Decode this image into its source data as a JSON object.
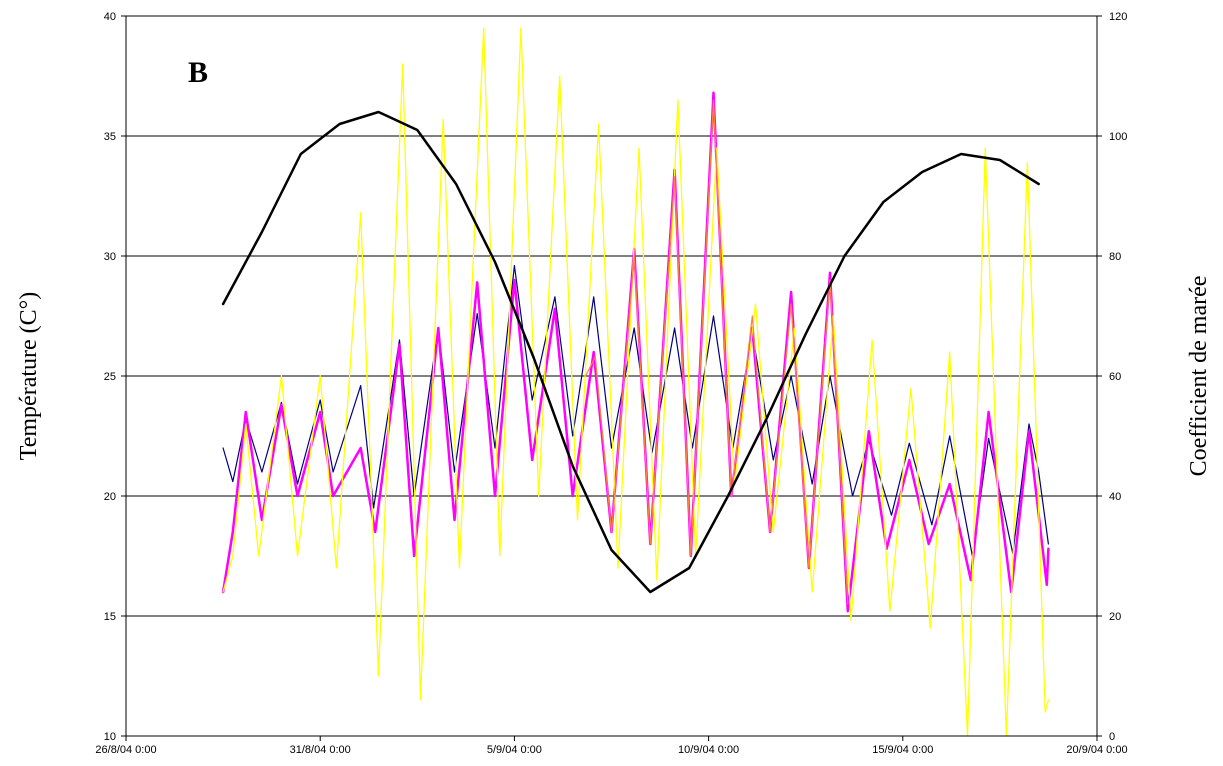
{
  "chart_data": {
    "type": "line",
    "panel_label": "B",
    "ylabel": "Température  (C°)",
    "ylabel_right": "Coefficient de marée",
    "xlim": [
      "2004-08-26T00:00",
      "2004-09-20T00:00"
    ],
    "ylim": [
      10,
      40
    ],
    "ylim_right": [
      0,
      120
    ],
    "x_ticks": [
      "26/8/04 0:00",
      "31/8/04 0:00",
      "5/9/04 0:00",
      "10/9/04 0:00",
      "15/9/04 0:00",
      "20/9/04 0:00"
    ],
    "y_ticks": [
      10,
      15,
      20,
      25,
      30,
      35,
      40
    ],
    "y_ticks_right": [
      0,
      20,
      40,
      60,
      80,
      100,
      120
    ],
    "grid": "horizontal",
    "colors": {
      "yellow": "#FFFF00",
      "magenta": "#FF00FF",
      "navy": "#000080",
      "orange": "#FF8040",
      "tide": "#000000"
    },
    "series": [
      {
        "axis": "left",
        "color_key": "navy",
        "points": [
          [
            "2004-08-28T12:00",
            22.0
          ],
          [
            "2004-08-28T18:00",
            20.6
          ],
          [
            "2004-08-29T02:00",
            23.2
          ],
          [
            "2004-08-29T12:00",
            21.0
          ],
          [
            "2004-08-30T00:00",
            23.9
          ],
          [
            "2004-08-30T10:00",
            20.5
          ],
          [
            "2004-08-31T00:00",
            24.0
          ],
          [
            "2004-08-31T08:00",
            21.0
          ],
          [
            "2004-09-01T01:00",
            24.6
          ],
          [
            "2004-09-01T09:00",
            19.5
          ],
          [
            "2004-09-02T01:00",
            26.5
          ],
          [
            "2004-09-02T10:00",
            20.0
          ],
          [
            "2004-09-03T01:00",
            27.0
          ],
          [
            "2004-09-03T11:00",
            21.0
          ],
          [
            "2004-09-04T01:00",
            27.6
          ],
          [
            "2004-09-04T12:00",
            22.0
          ],
          [
            "2004-09-05T00:00",
            29.6
          ],
          [
            "2004-09-05T11:00",
            24.0
          ],
          [
            "2004-09-06T01:00",
            28.3
          ],
          [
            "2004-09-06T12:00",
            22.5
          ],
          [
            "2004-09-07T01:00",
            28.3
          ],
          [
            "2004-09-07T12:00",
            22.0
          ],
          [
            "2004-09-08T02:00",
            27.0
          ],
          [
            "2004-09-08T13:00",
            21.8
          ],
          [
            "2004-09-09T03:00",
            27.0
          ],
          [
            "2004-09-09T14:00",
            22.0
          ],
          [
            "2004-09-10T03:00",
            27.5
          ],
          [
            "2004-09-10T15:00",
            22.0
          ],
          [
            "2004-09-11T03:00",
            26.8
          ],
          [
            "2004-09-11T16:00",
            21.5
          ],
          [
            "2004-09-12T03:00",
            25.0
          ],
          [
            "2004-09-12T16:00",
            20.5
          ],
          [
            "2004-09-13T03:00",
            25.0
          ],
          [
            "2004-09-13T17:00",
            20.0
          ],
          [
            "2004-09-14T03:00",
            22.3
          ],
          [
            "2004-09-14T17:00",
            19.2
          ],
          [
            "2004-09-15T04:00",
            22.2
          ],
          [
            "2004-09-15T18:00",
            18.8
          ],
          [
            "2004-09-16T05:00",
            22.5
          ],
          [
            "2004-09-16T19:00",
            17.5
          ],
          [
            "2004-09-17T05:00",
            22.4
          ],
          [
            "2004-09-17T20:00",
            17.6
          ],
          [
            "2004-09-18T06:00",
            23.0
          ],
          [
            "2004-09-18T12:00",
            21.0
          ],
          [
            "2004-09-18T18:00",
            18.0
          ]
        ]
      },
      {
        "axis": "left",
        "color_key": "magenta",
        "points": [
          [
            "2004-08-28T12:00",
            16.0
          ],
          [
            "2004-08-28T18:00",
            18.5
          ],
          [
            "2004-08-29T02:00",
            23.5
          ],
          [
            "2004-08-29T12:00",
            19.0
          ],
          [
            "2004-08-30T00:00",
            23.8
          ],
          [
            "2004-08-30T10:00",
            20.0
          ],
          [
            "2004-08-31T00:00",
            23.5
          ],
          [
            "2004-08-31T08:00",
            20.0
          ],
          [
            "2004-09-01T01:00",
            22.0
          ],
          [
            "2004-09-01T10:00",
            18.5
          ],
          [
            "2004-09-02T01:00",
            26.3
          ],
          [
            "2004-09-02T10:00",
            17.5
          ],
          [
            "2004-09-03T01:00",
            27.0
          ],
          [
            "2004-09-03T11:00",
            19.0
          ],
          [
            "2004-09-04T01:00",
            28.9
          ],
          [
            "2004-09-04T12:00",
            20.0
          ],
          [
            "2004-09-05T00:00",
            29.0
          ],
          [
            "2004-09-05T11:00",
            21.5
          ],
          [
            "2004-09-06T01:00",
            27.8
          ],
          [
            "2004-09-06T12:00",
            20.0
          ],
          [
            "2004-09-07T01:00",
            26.0
          ],
          [
            "2004-09-07T12:00",
            18.5
          ],
          [
            "2004-09-08T02:00",
            30.3
          ],
          [
            "2004-09-08T12:00",
            18.0
          ],
          [
            "2004-09-09T03:00",
            33.6
          ],
          [
            "2004-09-09T13:00",
            17.5
          ],
          [
            "2004-09-10T03:00",
            36.8
          ],
          [
            "2004-09-10T14:00",
            20.0
          ],
          [
            "2004-09-11T03:00",
            27.0
          ],
          [
            "2004-09-11T14:00",
            18.5
          ],
          [
            "2004-09-12T03:00",
            28.5
          ],
          [
            "2004-09-12T14:00",
            17.0
          ],
          [
            "2004-09-13T03:00",
            29.3
          ],
          [
            "2004-09-13T14:00",
            15.2
          ],
          [
            "2004-09-14T03:00",
            22.7
          ],
          [
            "2004-09-14T14:00",
            17.8
          ],
          [
            "2004-09-15T04:00",
            21.5
          ],
          [
            "2004-09-15T16:00",
            18.0
          ],
          [
            "2004-09-16T05:00",
            20.5
          ],
          [
            "2004-09-16T18:00",
            16.5
          ],
          [
            "2004-09-17T05:00",
            23.5
          ],
          [
            "2004-09-17T19:00",
            16.0
          ],
          [
            "2004-09-18T06:00",
            22.7
          ],
          [
            "2004-09-18T17:00",
            16.3
          ],
          [
            "2004-09-18T18:00",
            17.8
          ]
        ]
      },
      {
        "axis": "left",
        "color_key": "yellow",
        "points": [
          [
            "2004-08-28T12:00",
            16.0
          ],
          [
            "2004-08-28T18:00",
            17.5
          ],
          [
            "2004-08-29T02:00",
            23.0
          ],
          [
            "2004-08-29T10:00",
            17.5
          ],
          [
            "2004-08-30T00:00",
            25.0
          ],
          [
            "2004-08-30T10:00",
            17.5
          ],
          [
            "2004-08-31T00:00",
            25.0
          ],
          [
            "2004-08-31T10:00",
            17.0
          ],
          [
            "2004-09-01T01:00",
            31.8
          ],
          [
            "2004-09-01T12:00",
            12.5
          ],
          [
            "2004-09-02T03:00",
            38.0
          ],
          [
            "2004-09-02T14:00",
            11.5
          ],
          [
            "2004-09-03T04:00",
            35.7
          ],
          [
            "2004-09-03T14:00",
            17.0
          ],
          [
            "2004-09-04T05:00",
            39.5
          ],
          [
            "2004-09-04T15:00",
            17.5
          ],
          [
            "2004-09-05T04:00",
            39.5
          ],
          [
            "2004-09-05T15:00",
            20.0
          ],
          [
            "2004-09-06T04:00",
            37.5
          ],
          [
            "2004-09-06T15:00",
            19.0
          ],
          [
            "2004-09-07T04:00",
            35.5
          ],
          [
            "2004-09-07T16:00",
            17.0
          ],
          [
            "2004-09-08T05:00",
            34.5
          ],
          [
            "2004-09-08T16:00",
            16.5
          ],
          [
            "2004-09-09T05:00",
            36.5
          ],
          [
            "2004-09-09T16:00",
            17.5
          ],
          [
            "2004-09-10T05:00",
            34.5
          ],
          [
            "2004-09-10T16:00",
            20.5
          ],
          [
            "2004-09-11T05:00",
            28.0
          ],
          [
            "2004-09-11T16:00",
            18.5
          ],
          [
            "2004-09-12T05:00",
            27.0
          ],
          [
            "2004-09-12T16:00",
            16.0
          ],
          [
            "2004-09-13T05:00",
            27.5
          ],
          [
            "2004-09-13T16:00",
            14.8
          ],
          [
            "2004-09-14T05:00",
            26.5
          ],
          [
            "2004-09-14T16:00",
            15.2
          ],
          [
            "2004-09-15T05:00",
            24.5
          ],
          [
            "2004-09-15T17:00",
            14.5
          ],
          [
            "2004-09-16T05:00",
            26.0
          ],
          [
            "2004-09-16T16:00",
            10.0
          ],
          [
            "2004-09-17T03:00",
            34.5
          ],
          [
            "2004-09-17T16:00",
            10.0
          ],
          [
            "2004-09-18T05:00",
            33.9
          ],
          [
            "2004-09-18T16:00",
            11.0
          ],
          [
            "2004-09-18T18:00",
            11.5
          ]
        ]
      },
      {
        "axis": "left",
        "color_key": "orange",
        "points": [
          [
            "2004-09-06T20:00",
            25.0
          ],
          [
            "2004-09-07T02:00",
            25.8
          ],
          [
            "2004-09-07T12:00",
            18.5
          ],
          [
            "2004-09-08T02:00",
            30.0
          ],
          [
            "2004-09-08T12:00",
            18.0
          ],
          [
            "2004-09-09T03:00",
            33.3
          ],
          [
            "2004-09-09T13:00",
            17.5
          ],
          [
            "2004-09-10T03:00",
            36.5
          ],
          [
            "2004-09-10T14:00",
            20.0
          ],
          [
            "2004-09-11T03:00",
            27.5
          ],
          [
            "2004-09-11T14:00",
            18.5
          ],
          [
            "2004-09-12T03:00",
            28.0
          ],
          [
            "2004-09-12T14:00",
            17.0
          ],
          [
            "2004-09-13T03:00",
            29.0
          ],
          [
            "2004-09-13T14:00",
            15.5
          ]
        ]
      },
      {
        "axis": "right",
        "color_key": "tide",
        "points": [
          [
            "2004-08-28T12:00",
            72
          ],
          [
            "2004-08-29T12:00",
            84
          ],
          [
            "2004-08-30T12:00",
            97
          ],
          [
            "2004-08-31T12:00",
            102
          ],
          [
            "2004-09-01T12:00",
            104
          ],
          [
            "2004-09-02T12:00",
            101
          ],
          [
            "2004-09-03T12:00",
            92
          ],
          [
            "2004-09-04T12:00",
            79
          ],
          [
            "2004-09-05T12:00",
            63
          ],
          [
            "2004-09-06T12:00",
            45
          ],
          [
            "2004-09-07T12:00",
            31
          ],
          [
            "2004-09-08T12:00",
            24
          ],
          [
            "2004-09-09T12:00",
            28
          ],
          [
            "2004-09-10T12:00",
            40
          ],
          [
            "2004-09-11T12:00",
            53
          ],
          [
            "2004-09-12T12:00",
            67
          ],
          [
            "2004-09-13T12:00",
            80
          ],
          [
            "2004-09-14T12:00",
            89
          ],
          [
            "2004-09-15T12:00",
            94
          ],
          [
            "2004-09-16T12:00",
            97
          ],
          [
            "2004-09-17T12:00",
            96
          ],
          [
            "2004-09-18T12:00",
            92
          ]
        ]
      }
    ]
  }
}
